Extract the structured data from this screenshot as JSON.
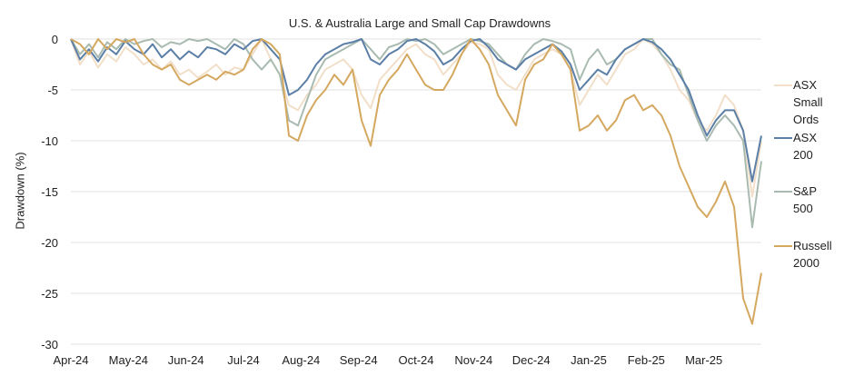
{
  "chart_data": {
    "type": "line",
    "title": "U.S. & Australia Large and Small Cap Drawdowns",
    "xlabel": "",
    "ylabel": "Drawdown (%)",
    "ylim": [
      -30,
      0
    ],
    "yticks": [
      0,
      -5,
      -10,
      -15,
      -20,
      -25,
      -30
    ],
    "ytick_labels": [
      "0",
      "-5",
      "-10",
      "-15",
      "-20",
      "-25",
      "-30"
    ],
    "xlim_index": [
      0,
      12
    ],
    "xticks": [
      "Apr-24",
      "May-24",
      "Jun-24",
      "Jul-24",
      "Aug-24",
      "Sep-24",
      "Oct-24",
      "Nov-24",
      "Dec-24",
      "Jan-25",
      "Feb-25",
      "Mar-25"
    ],
    "grid": "horizontal",
    "legend_position": "right",
    "x_sample_note": "Each series sampled at 77 evenly spaced points from start of Apr-24 (index 0) to end of Mar-25 (index 12)",
    "series": [
      {
        "name": "ASX Small Ords",
        "legend_lines": [
          "ASX",
          "Small",
          "Ords"
        ],
        "color": "#f2dfc9",
        "values": [
          0,
          -2.5,
          -1.2,
          -2.8,
          -1.5,
          -2.2,
          -0.8,
          -1.5,
          -2.5,
          -2.0,
          -3.0,
          -2.2,
          -3.5,
          -3.0,
          -3.8,
          -3.2,
          -2.5,
          -3.5,
          -2.8,
          -3.0,
          -1.5,
          0,
          -2.0,
          -3.5,
          -6.5,
          -7.0,
          -5.5,
          -4.5,
          -3.0,
          -2.5,
          -2.0,
          -3.0,
          -5.5,
          -6.8,
          -4.0,
          -3.0,
          -2.0,
          -1.0,
          -0.5,
          -1.5,
          -2.0,
          -3.5,
          -2.5,
          -1.5,
          -0.3,
          -0.5,
          -1.0,
          -3.5,
          -4.5,
          -5.0,
          -3.5,
          -2.0,
          -1.5,
          -1.0,
          -1.5,
          -3.0,
          -6.5,
          -5.0,
          -3.5,
          -4.5,
          -3.0,
          -1.5,
          -1.0,
          0,
          -0.5,
          -1.5,
          -3.0,
          -5.0,
          -6.0,
          -8.0,
          -9.0,
          -7.5,
          -5.5,
          -6.5,
          -9.0,
          -15.5,
          -10.0
        ],
        "last_value": -10
      },
      {
        "name": "ASX 200",
        "legend_lines": [
          "ASX",
          "200"
        ],
        "color": "#5b7fa6",
        "values": [
          0,
          -2.0,
          -1.0,
          -2.2,
          -0.8,
          -1.5,
          -0.2,
          -1.0,
          -1.5,
          -0.5,
          -1.8,
          -1.0,
          -2.0,
          -1.2,
          -1.8,
          -0.8,
          -1.0,
          -1.5,
          -0.5,
          -1.0,
          -0.2,
          0,
          -1.0,
          -2.0,
          -5.5,
          -5.0,
          -4.0,
          -2.5,
          -1.5,
          -1.0,
          -0.5,
          -0.3,
          0,
          -2.0,
          -2.5,
          -1.5,
          -1.0,
          -0.2,
          0,
          -0.5,
          -1.2,
          -2.5,
          -2.0,
          -1.0,
          -0.2,
          0,
          -0.8,
          -2.0,
          -2.5,
          -3.0,
          -2.0,
          -1.5,
          -1.0,
          -0.5,
          -1.2,
          -2.5,
          -5.0,
          -4.0,
          -3.0,
          -3.5,
          -2.0,
          -1.0,
          -0.5,
          0,
          -0.3,
          -1.0,
          -2.0,
          -3.5,
          -5.0,
          -7.5,
          -9.5,
          -8.0,
          -7.0,
          -7.0,
          -9.0,
          -14.0,
          -9.5
        ],
        "last_value": -9.4
      },
      {
        "name": "S&P 500",
        "legend_lines": [
          "S&P",
          "500"
        ],
        "color": "#a9bbb0",
        "values": [
          0,
          -1.5,
          -0.5,
          -1.8,
          -0.3,
          -1.0,
          0,
          -0.5,
          -0.2,
          0,
          -0.8,
          -0.3,
          -0.5,
          0,
          -0.2,
          0,
          -0.5,
          -1.0,
          0,
          -0.5,
          -2.0,
          -3.0,
          -2.0,
          -3.5,
          -8.0,
          -8.5,
          -6.0,
          -3.5,
          -2.0,
          -1.5,
          -1.0,
          -0.5,
          0,
          -1.0,
          -2.0,
          -0.8,
          -0.5,
          0,
          -0.2,
          0,
          -0.5,
          -1.5,
          -1.0,
          -0.5,
          0,
          -0.2,
          -0.5,
          -1.5,
          -2.5,
          -3.0,
          -1.5,
          -0.5,
          0,
          -0.2,
          -0.5,
          -1.0,
          -4.0,
          -2.0,
          -1.0,
          -2.5,
          -2.0,
          -1.0,
          -0.5,
          0,
          0,
          -1.5,
          -2.5,
          -3.0,
          -5.5,
          -8.0,
          -10.0,
          -8.5,
          -7.5,
          -8.5,
          -10.0,
          -18.5,
          -12.0
        ],
        "last_value": -12
      },
      {
        "name": "Russell 2000",
        "legend_lines": [
          "Russell",
          "2000"
        ],
        "color": "#d4a85f",
        "values": [
          0,
          -0.5,
          -1.5,
          0,
          -1.0,
          0,
          -0.3,
          0,
          -1.5,
          -2.5,
          -3.0,
          -2.5,
          -4.0,
          -4.5,
          -4.0,
          -3.5,
          -4.0,
          -3.2,
          -3.5,
          -3.0,
          -1.0,
          0,
          -0.5,
          -1.5,
          -9.5,
          -10.0,
          -7.5,
          -6.0,
          -5.0,
          -3.5,
          -4.5,
          -3.0,
          -8.0,
          -10.5,
          -5.5,
          -4.0,
          -3.0,
          -1.5,
          -3.0,
          -4.5,
          -5.0,
          -5.0,
          -3.5,
          -1.5,
          0,
          -1.0,
          -2.5,
          -5.5,
          -7.0,
          -8.5,
          -4.0,
          -2.5,
          -2.0,
          -0.5,
          -1.5,
          -3.0,
          -9.0,
          -8.5,
          -7.5,
          -9.0,
          -8.0,
          -6.0,
          -5.5,
          -7.0,
          -6.5,
          -7.5,
          -9.5,
          -12.5,
          -14.5,
          -16.5,
          -17.5,
          -16.0,
          -14.0,
          -16.5,
          -25.5,
          -28.0,
          -23.0
        ],
        "last_value": -23
      }
    ]
  }
}
